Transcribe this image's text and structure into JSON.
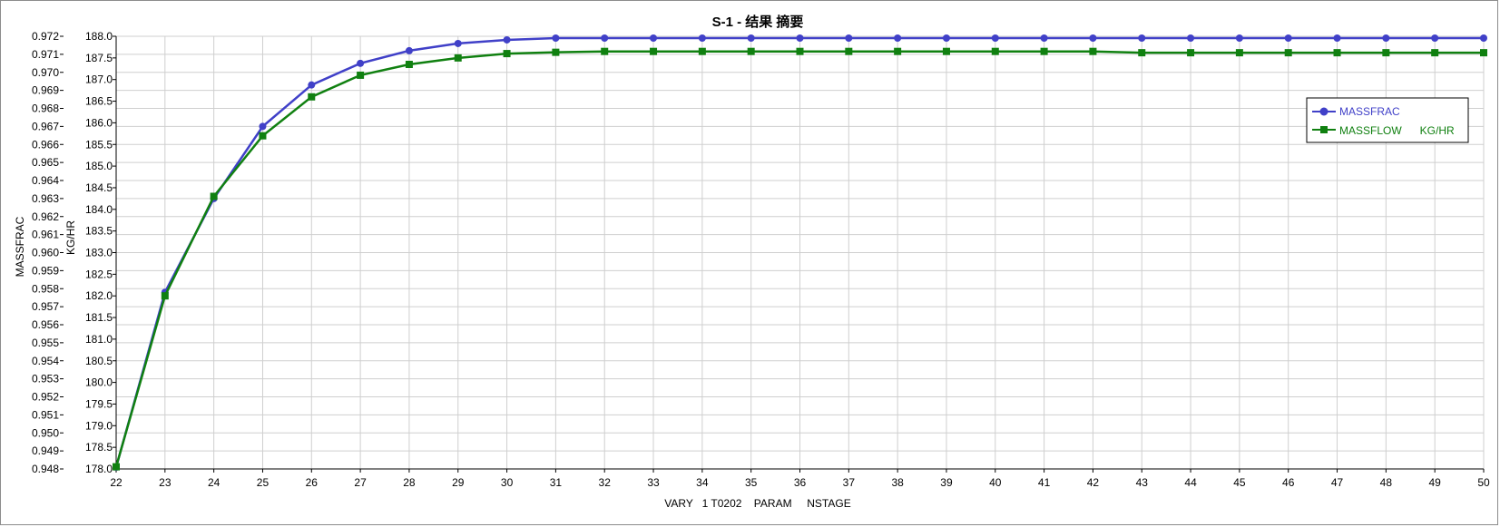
{
  "chart_data": {
    "type": "line",
    "title": "S-1 - 结果 摘要",
    "xlabel": "VARY   1 T0202    PARAM     NSTAGE",
    "x": [
      22,
      23,
      24,
      25,
      26,
      27,
      28,
      29,
      30,
      31,
      32,
      33,
      34,
      35,
      36,
      37,
      38,
      39,
      40,
      41,
      42,
      43,
      44,
      45,
      46,
      47,
      48,
      49,
      50
    ],
    "xlim": [
      22,
      50
    ],
    "grid": true,
    "legend_position": "top-right",
    "axes": {
      "left": {
        "label": "MASSFRAC",
        "ylim": [
          0.948,
          0.972
        ],
        "ticks": [
          "0.948",
          "0.949",
          "0.950",
          "0.951",
          "0.952",
          "0.953",
          "0.954",
          "0.955",
          "0.956",
          "0.957",
          "0.958",
          "0.959",
          "0.960",
          "0.961",
          "0.962",
          "0.963",
          "0.964",
          "0.965",
          "0.966",
          "0.967",
          "0.968",
          "0.969",
          "0.970",
          "0.971",
          "0.972"
        ]
      },
      "right": {
        "label": "KG/HR",
        "ylim": [
          178.0,
          188.0
        ],
        "ticks": [
          "178.0",
          "178.5",
          "179.0",
          "179.5",
          "180.0",
          "180.5",
          "181.0",
          "181.5",
          "182.0",
          "182.5",
          "183.0",
          "183.5",
          "184.0",
          "184.5",
          "185.0",
          "185.5",
          "186.0",
          "186.5",
          "187.0",
          "187.5",
          "188.0"
        ]
      }
    },
    "series": [
      {
        "name": "MASSFRAC",
        "axis": "left",
        "color": "#4040c8",
        "marker": "circle",
        "values": [
          0.9481,
          0.9578,
          0.963,
          0.967,
          0.9693,
          0.9705,
          0.9712,
          0.9716,
          0.9718,
          0.9719,
          0.9719,
          0.9719,
          0.9719,
          0.9719,
          0.9719,
          0.9719,
          0.9719,
          0.9719,
          0.9719,
          0.9719,
          0.9719,
          0.9719,
          0.9719,
          0.9719,
          0.9719,
          0.9719,
          0.9719,
          0.9719,
          0.9719
        ]
      },
      {
        "name": "MASSFLOW      KG/HR",
        "axis": "right",
        "color": "#108010",
        "marker": "square",
        "values": [
          178.05,
          182.0,
          184.3,
          185.7,
          186.6,
          187.1,
          187.35,
          187.5,
          187.6,
          187.63,
          187.65,
          187.65,
          187.65,
          187.65,
          187.65,
          187.65,
          187.65,
          187.65,
          187.65,
          187.65,
          187.65,
          187.62,
          187.62,
          187.62,
          187.62,
          187.62,
          187.62,
          187.62,
          187.62
        ]
      }
    ]
  }
}
